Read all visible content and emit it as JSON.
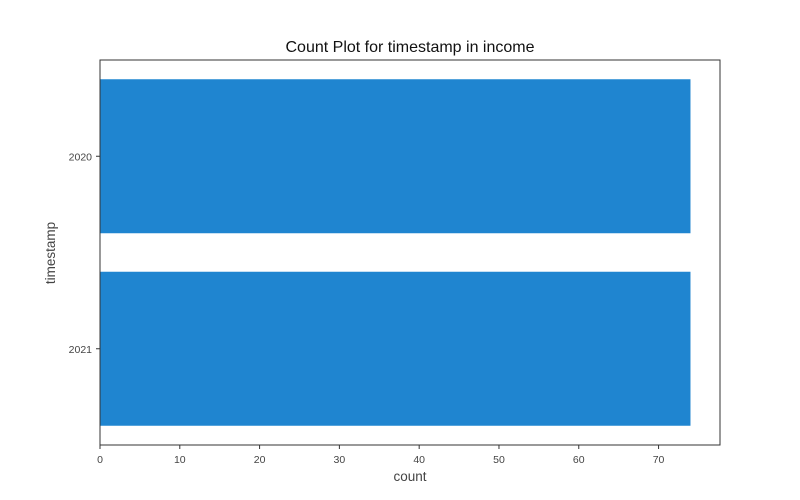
{
  "chart_data": {
    "type": "bar",
    "orientation": "horizontal",
    "title": "Count Plot for timestamp in income",
    "xlabel": "count",
    "ylabel": "timestamp",
    "categories": [
      "2020",
      "2021"
    ],
    "values": [
      74,
      74
    ],
    "xlim": [
      0,
      77.7
    ],
    "xticks": [
      0,
      10,
      20,
      30,
      40,
      50,
      60,
      70
    ],
    "bar_color": "#1f85d0",
    "grid": false,
    "legend": "none"
  }
}
